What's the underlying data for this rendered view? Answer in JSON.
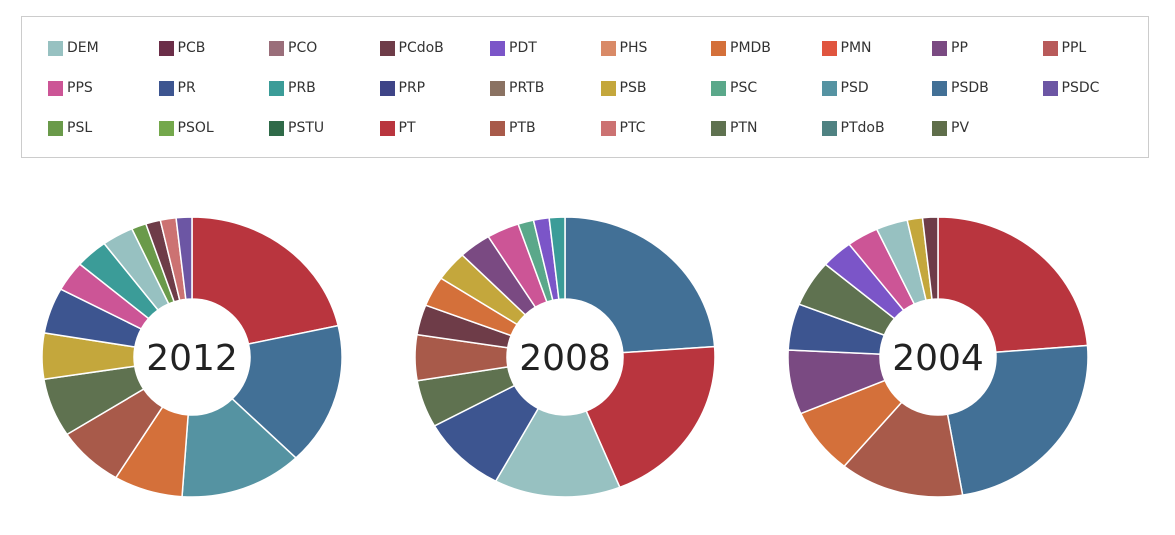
{
  "legend": {
    "items": [
      {
        "label": "DEM",
        "color": "#97c1c1"
      },
      {
        "label": "PCB",
        "color": "#6b2e48"
      },
      {
        "label": "PCO",
        "color": "#9a6e7a"
      },
      {
        "label": "PCdoB",
        "color": "#6e3c48"
      },
      {
        "label": "PDT",
        "color": "#7b55c8"
      },
      {
        "label": "PHS",
        "color": "#d98a67"
      },
      {
        "label": "PMDB",
        "color": "#d4703a"
      },
      {
        "label": "PMN",
        "color": "#e0553f"
      },
      {
        "label": "PP",
        "color": "#7a4a82"
      },
      {
        "label": "PPL",
        "color": "#b85a5a"
      },
      {
        "label": "PPS",
        "color": "#cc5596"
      },
      {
        "label": "PR",
        "color": "#3d5590"
      },
      {
        "label": "PRB",
        "color": "#3b9c98"
      },
      {
        "label": "PRP",
        "color": "#3e4487"
      },
      {
        "label": "PRTB",
        "color": "#8a7262"
      },
      {
        "label": "PSB",
        "color": "#c4a73c"
      },
      {
        "label": "PSC",
        "color": "#5aa88a"
      },
      {
        "label": "PSD",
        "color": "#5593a2"
      },
      {
        "label": "PSDB",
        "color": "#427096"
      },
      {
        "label": "PSDC",
        "color": "#6c56a4"
      },
      {
        "label": "PSL",
        "color": "#6a9a4a"
      },
      {
        "label": "PSOL",
        "color": "#74a84c"
      },
      {
        "label": "PSTU",
        "color": "#2f6a48"
      },
      {
        "label": "PT",
        "color": "#b9353e"
      },
      {
        "label": "PTB",
        "color": "#a85a4a"
      },
      {
        "label": "PTC",
        "color": "#cc7272"
      },
      {
        "label": "PTN",
        "color": "#5f7250"
      },
      {
        "label": "PTdoB",
        "color": "#4f8282"
      },
      {
        "label": "PV",
        "color": "#5f6e4a"
      }
    ]
  },
  "chart_data": [
    {
      "type": "pie",
      "donut": true,
      "label": "2012",
      "slices": [
        {
          "party": "PT",
          "value": 20.2
        },
        {
          "party": "PSDB",
          "value": 15.5
        },
        {
          "party": "PSD",
          "value": 12.5
        },
        {
          "party": "PMDB",
          "value": 7.0
        },
        {
          "party": "PTB",
          "value": 6.8
        },
        {
          "party": "PTN",
          "value": 6.4
        },
        {
          "party": "PSB",
          "value": 5.0
        },
        {
          "party": "PR",
          "value": 5.0
        },
        {
          "party": "PPS",
          "value": 3.3
        },
        {
          "party": "PRB",
          "value": 3.3
        },
        {
          "party": "DEM",
          "value": 3.2
        },
        {
          "party": "PSL",
          "value": 1.5
        },
        {
          "party": "PCdoB",
          "value": 1.5
        },
        {
          "party": "PTC",
          "value": 1.6
        },
        {
          "party": "PSDC",
          "value": 1.6
        }
      ]
    },
    {
      "type": "pie",
      "donut": true,
      "label": "2008",
      "slices": [
        {
          "party": "PSDB",
          "value": 22.6
        },
        {
          "party": "PT",
          "value": 19.2
        },
        {
          "party": "DEM",
          "value": 12.9
        },
        {
          "party": "PR",
          "value": 8.7
        },
        {
          "party": "PTN",
          "value": 5.2
        },
        {
          "party": "PTB",
          "value": 5.0
        },
        {
          "party": "PCdoB",
          "value": 3.3
        },
        {
          "party": "PMDB",
          "value": 3.3
        },
        {
          "party": "PSB",
          "value": 3.3
        },
        {
          "party": "PP",
          "value": 3.3
        },
        {
          "party": "PPS",
          "value": 3.3
        },
        {
          "party": "PSC",
          "value": 1.6
        },
        {
          "party": "PDT",
          "value": 1.6
        },
        {
          "party": "PRB",
          "value": 1.6
        }
      ]
    },
    {
      "type": "pie",
      "donut": true,
      "label": "2004",
      "slices": [
        {
          "party": "PT",
          "value": 23.0
        },
        {
          "party": "PSDB",
          "value": 23.0
        },
        {
          "party": "PTB",
          "value": 13.0
        },
        {
          "party": "PMDB",
          "value": 7.4
        },
        {
          "party": "PP",
          "value": 7.2
        },
        {
          "party": "PR",
          "value": 5.2
        },
        {
          "party": "PTN",
          "value": 5.2
        },
        {
          "party": "PDT",
          "value": 3.3
        },
        {
          "party": "PPS",
          "value": 3.3
        },
        {
          "party": "DEM",
          "value": 3.3
        },
        {
          "party": "PSB",
          "value": 1.6
        },
        {
          "party": "PCdoB",
          "value": 1.6
        }
      ]
    }
  ]
}
